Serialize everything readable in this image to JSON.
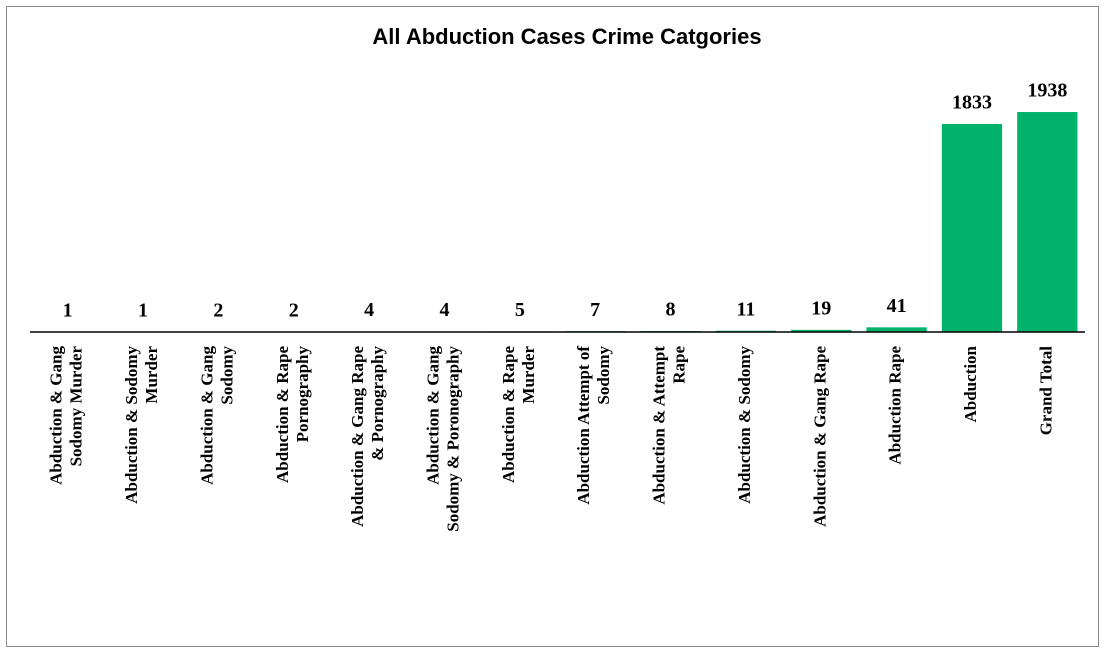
{
  "chart_data": {
    "type": "bar",
    "title": "All Abduction Cases Crime Catgories",
    "categories": [
      "Abduction & Gang Sodomy Murder",
      "Abduction & Sodomy Murder",
      "Abduction & Gang Sodomy",
      "Abduction & Rape Pornography",
      "Abduction & Gang Rape & Pornography",
      "Abduction & Gang Sodomy & Poronography",
      "Abduction & Rape Murder",
      "Abduction Attempt of Sodomy",
      "Abduction & Attempt Rape",
      "Abduction & Sodomy",
      "Abduction & Gang Rape",
      "Abduction Rape",
      "Abduction",
      "Grand Total"
    ],
    "values": [
      1,
      1,
      2,
      2,
      4,
      4,
      5,
      7,
      8,
      11,
      19,
      41,
      1833,
      1938
    ],
    "color": "#00b26a",
    "ylim": [
      0,
      2000
    ],
    "grid": false
  }
}
